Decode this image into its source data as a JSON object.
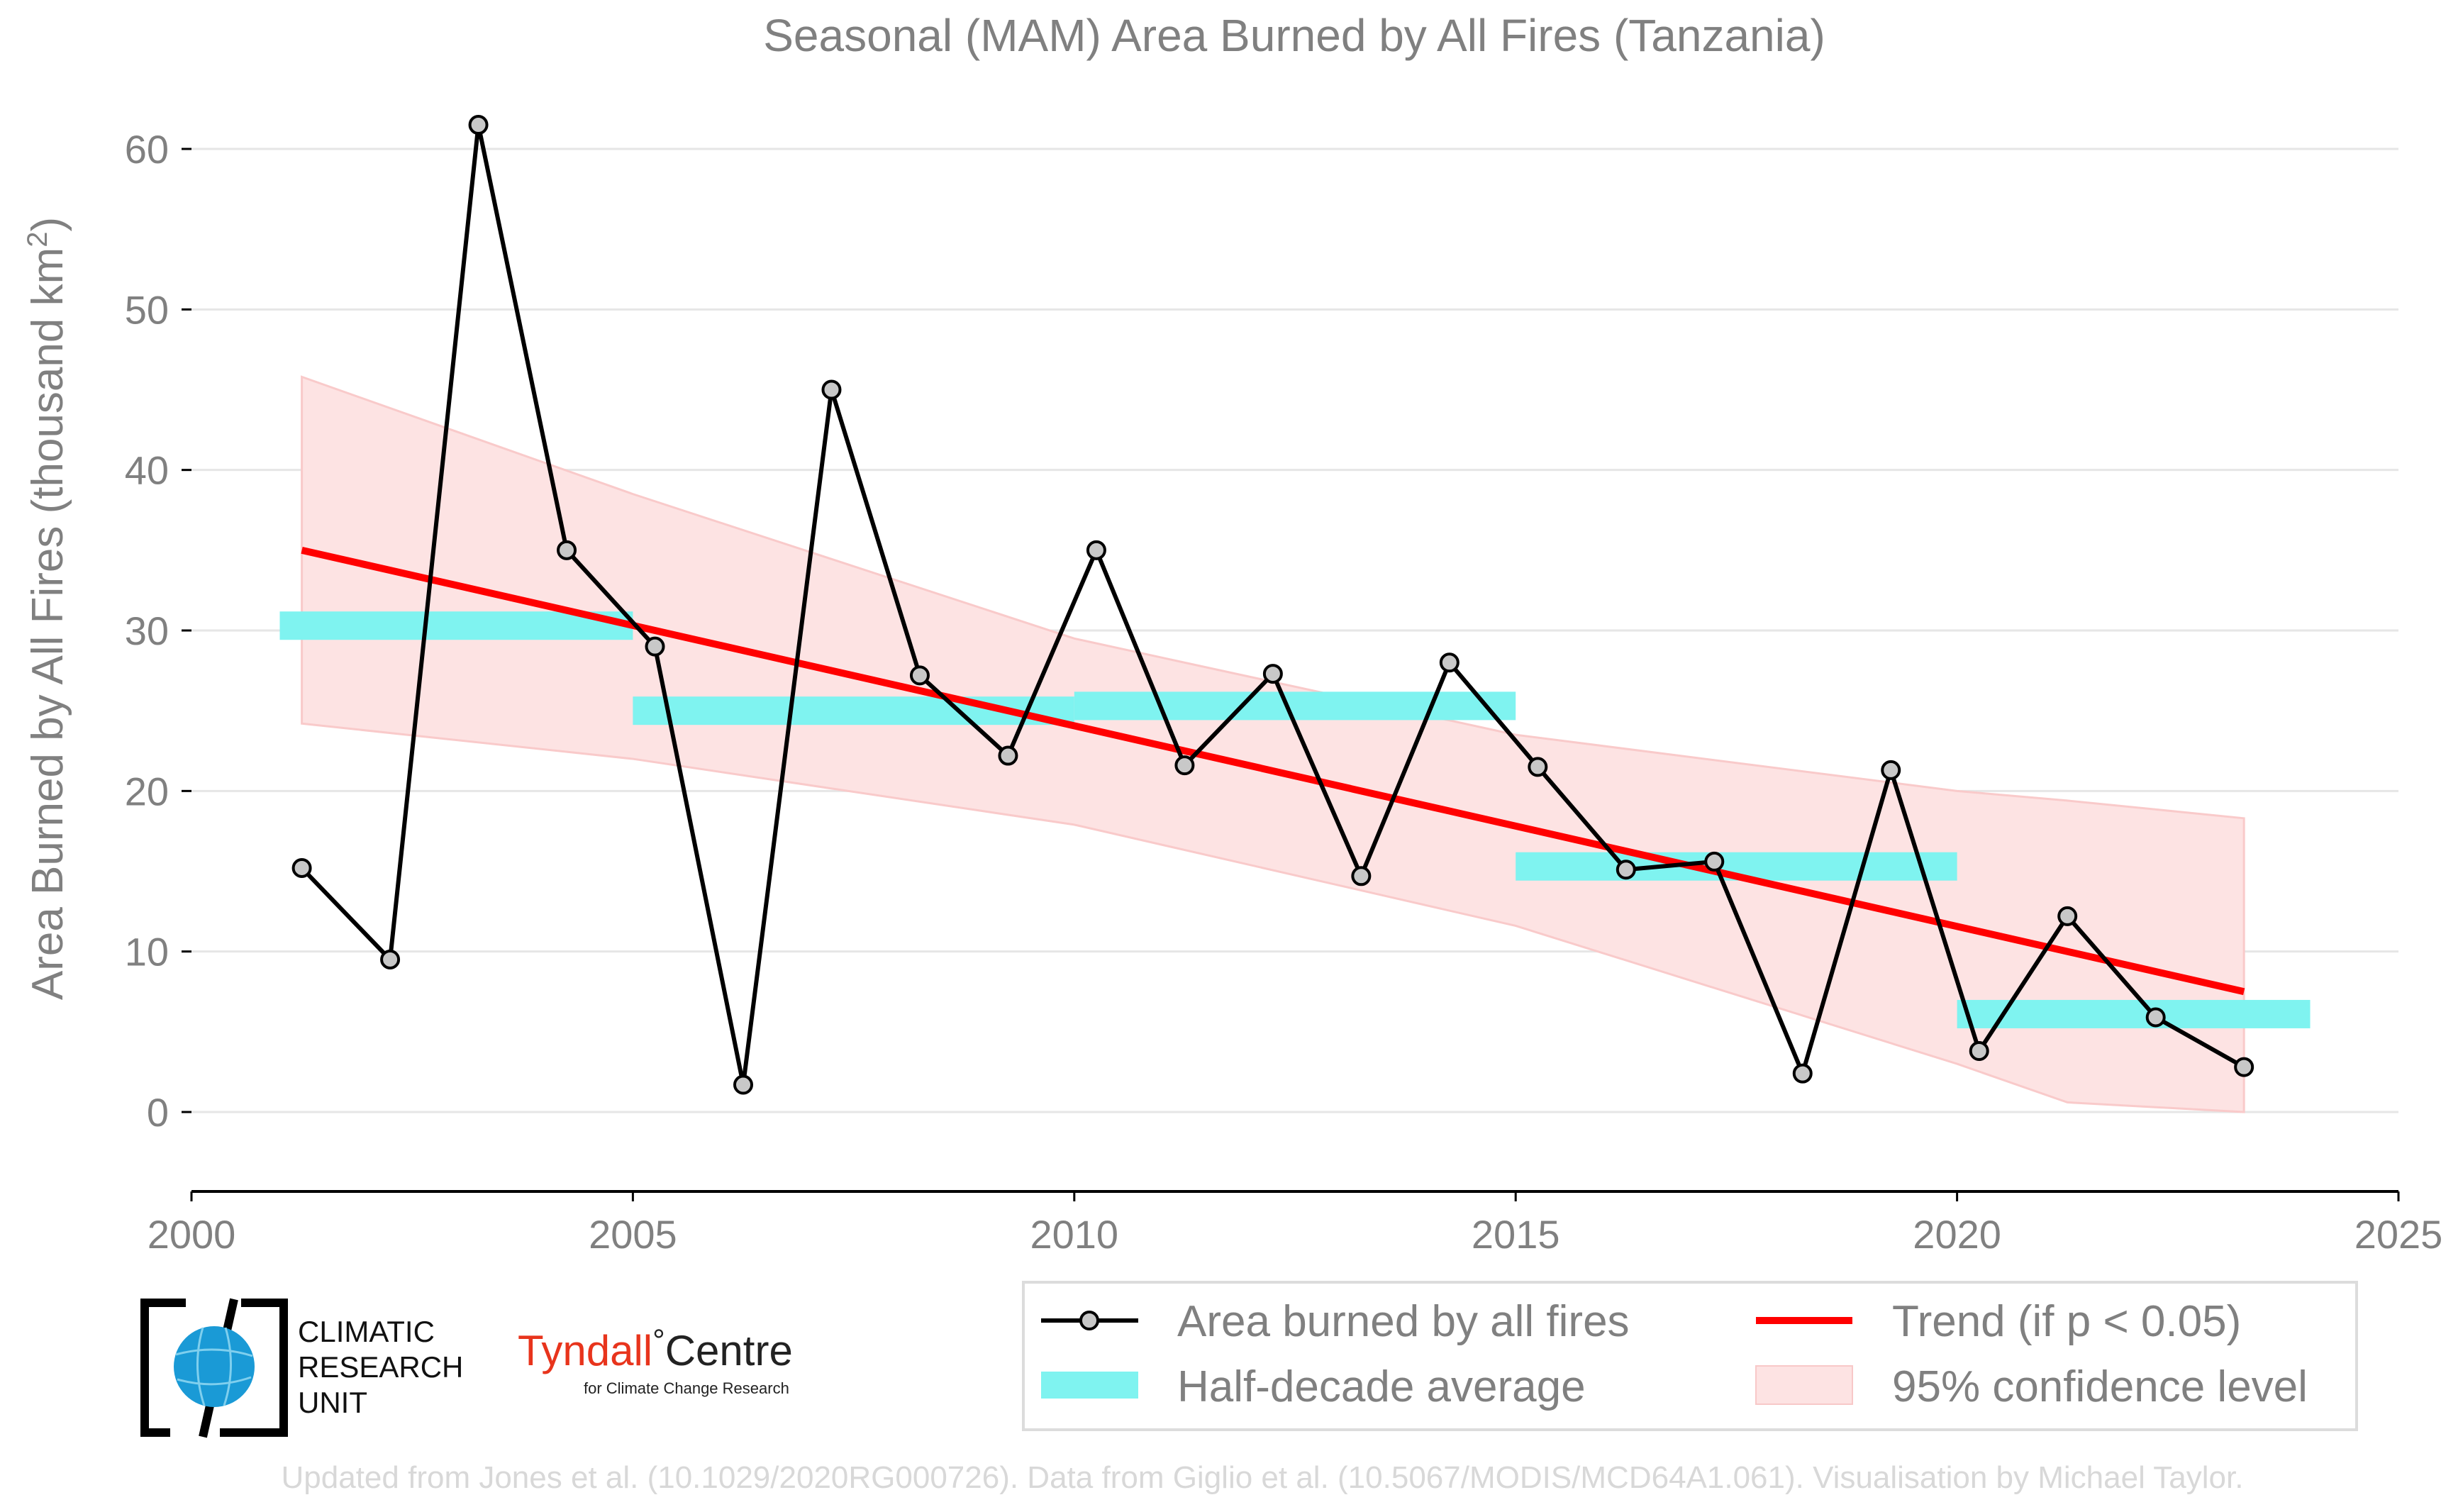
{
  "chart_data": {
    "type": "line",
    "title": "Seasonal (MAM) Area Burned by All Fires (Tanzania)",
    "xlabel": "",
    "ylabel_main": "Area Burned by All Fires (thousand km",
    "ylabel_sup": "2",
    "ylabel_close": ")",
    "xlim": [
      2000,
      2025
    ],
    "ylim": [
      -5,
      63
    ],
    "xticks": [
      2000,
      2005,
      2010,
      2015,
      2020,
      2025
    ],
    "yticks": [
      0,
      10,
      20,
      30,
      40,
      50,
      60
    ],
    "grid": "horizontal",
    "series": [
      {
        "name": "Area burned by all fires",
        "color": "#000000",
        "x": [
          2001.25,
          2002.25,
          2003.25,
          2004.25,
          2005.25,
          2006.25,
          2007.25,
          2008.25,
          2009.25,
          2010.25,
          2011.25,
          2012.25,
          2013.25,
          2014.25,
          2015.25,
          2016.25,
          2017.25,
          2018.25,
          2019.25,
          2020.25,
          2021.25,
          2022.25,
          2023.25
        ],
        "y": [
          15.2,
          9.5,
          61.5,
          35.0,
          29.0,
          1.7,
          45.0,
          27.2,
          22.2,
          35.0,
          21.6,
          27.3,
          14.7,
          28.0,
          21.5,
          15.1,
          15.6,
          2.4,
          21.3,
          3.8,
          12.2,
          5.9,
          2.8
        ]
      },
      {
        "name": "Half-decade average",
        "color": "#7ff3f0",
        "segments": [
          {
            "x0": 2001,
            "x1": 2005,
            "y": 30.3
          },
          {
            "x0": 2005,
            "x1": 2010,
            "y": 25.0
          },
          {
            "x0": 2010,
            "x1": 2015,
            "y": 25.3
          },
          {
            "x0": 2015,
            "x1": 2020,
            "y": 15.3
          },
          {
            "x0": 2020,
            "x1": 2024,
            "y": 6.1
          }
        ]
      },
      {
        "name": "Trend (if p < 0.05)",
        "color": "#ff0000",
        "x": [
          2001.25,
          2023.25
        ],
        "y": [
          35.0,
          7.5
        ]
      },
      {
        "name": "95% confidence level",
        "color": "#fde3e3",
        "x": [
          2001.25,
          2005,
          2010,
          2015,
          2020,
          2021.25,
          2023.25
        ],
        "upper": [
          45.8,
          38.5,
          29.5,
          23.5,
          20.0,
          19.4,
          18.3
        ],
        "lower": [
          24.2,
          22.0,
          17.9,
          11.6,
          3.0,
          0.6,
          0.0
        ]
      }
    ],
    "legend": {
      "placement": "bottom-right",
      "items": [
        "Area burned by all fires",
        "Trend (if p < 0.05)",
        "Half-decade average",
        "95% confidence level"
      ]
    }
  },
  "logos": {
    "cru": [
      "CLIMATIC",
      "RESEARCH",
      "UNIT"
    ],
    "cru_color": "#1a9ad6",
    "tyndall_main": "Tyndall",
    "tyndall_degree": "°",
    "tyndall_centre": "Centre",
    "tyndall_sub": "for Climate Change Research",
    "tyndall_color": "#e8341c"
  },
  "credit": "Updated from Jones et al. (10.1029/2020RG000726). Data from Giglio et al. (10.5067/MODIS/MCD64A1.061). Visualisation by Michael Taylor."
}
